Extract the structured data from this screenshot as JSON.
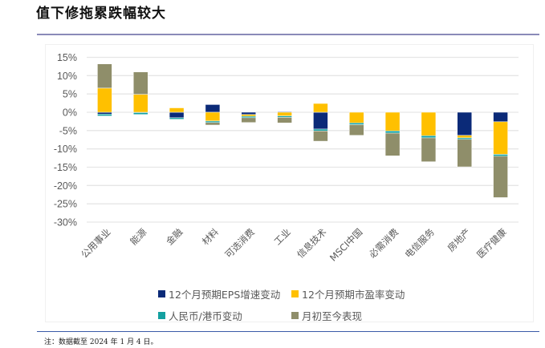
{
  "header": {
    "title": "值下修拖累跌幅较大"
  },
  "footer": {
    "note": "注：数据截至 2024 年 1 月 4 日。"
  },
  "colors": {
    "eps": "#0b2a78",
    "pe": "#ffc000",
    "fx": "#14a0a0",
    "total": "#8f8e6a",
    "grid": "#e6e6e6"
  },
  "chart_data": {
    "type": "bar",
    "stacked": true,
    "title": "",
    "xlabel": "",
    "ylabel": "",
    "ylim": [
      -30,
      15
    ],
    "yticks": [
      15,
      10,
      5,
      0,
      -5,
      -10,
      -15,
      -20,
      -25,
      -30
    ],
    "ytick_labels": [
      "15%",
      "10%",
      "5%",
      "0%",
      "-5%",
      "-10%",
      "-15%",
      "-20%",
      "-25%",
      "-30%"
    ],
    "grid": true,
    "legend_position": "bottom",
    "categories": [
      "公用事业",
      "能源",
      "金融",
      "材料",
      "可选消费",
      "工业",
      "信息技术",
      "MSCI中国",
      "必需消费",
      "电信服务",
      "房地产",
      "医疗健康"
    ],
    "series": [
      {
        "name": "12个月预期EPS增速变动",
        "key": "eps",
        "values": [
          -0.5,
          -0.1,
          -1.5,
          2.1,
          -0.6,
          0.2,
          -4.6,
          0.0,
          0.0,
          0.0,
          -6.3,
          -2.6
        ]
      },
      {
        "name": "12个月预期市盈率变动",
        "key": "pe",
        "values": [
          6.6,
          4.9,
          1.2,
          -2.4,
          -0.5,
          -1.0,
          2.4,
          -2.9,
          -5.1,
          -6.4,
          -0.7,
          -8.9
        ]
      },
      {
        "name": "人民币/港币变动",
        "key": "fx",
        "values": [
          -0.5,
          -0.5,
          -0.4,
          -0.4,
          -0.4,
          -0.4,
          -0.5,
          -0.5,
          -0.6,
          -0.6,
          -0.4,
          -0.5
        ]
      },
      {
        "name": "月初至今表现",
        "key": "total",
        "values": [
          6.6,
          6.1,
          0.0,
          -0.7,
          -1.3,
          -1.5,
          -2.8,
          -2.9,
          -6.2,
          -6.5,
          -7.5,
          -11.3
        ]
      }
    ]
  },
  "legend": [
    {
      "label": "12个月预期EPS增速变动",
      "key": "eps"
    },
    {
      "label": "12个月预期市盈率变动",
      "key": "pe"
    },
    {
      "label": "人民币/港币变动",
      "key": "fx"
    },
    {
      "label": "月初至今表现",
      "key": "total"
    }
  ]
}
